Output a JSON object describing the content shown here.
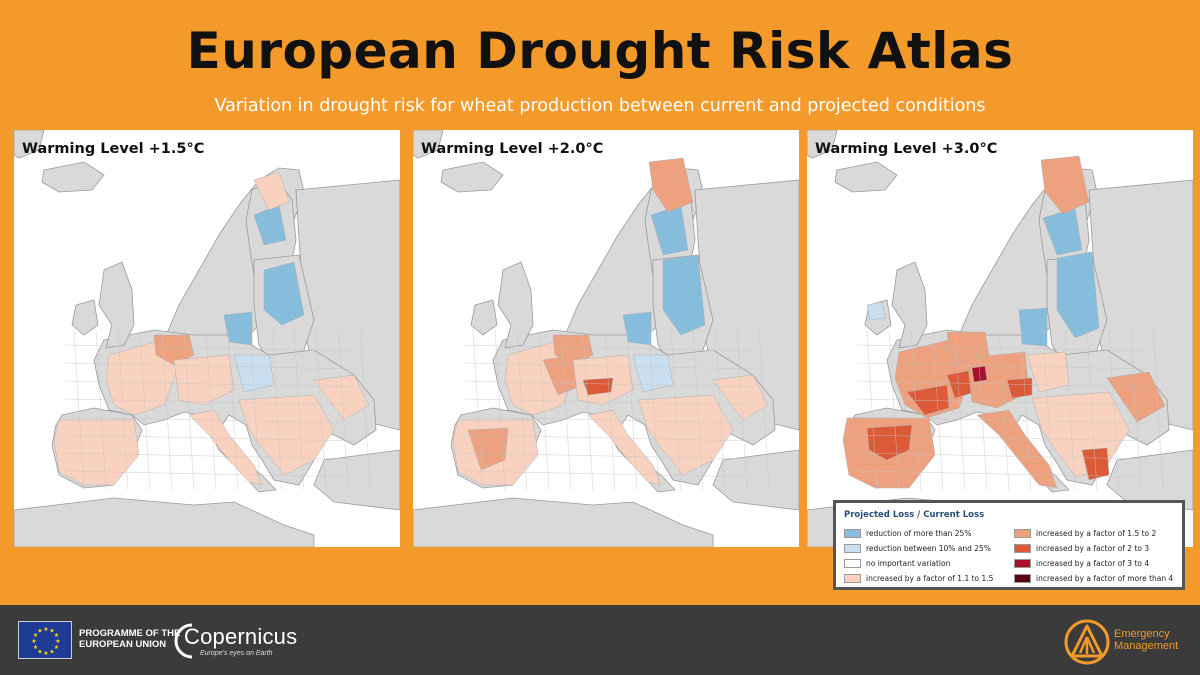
{
  "header": {
    "title": "European Drought Risk Atlas",
    "subtitle": "Variation in drought risk for wheat production between current and projected conditions"
  },
  "panels": [
    {
      "label": "Warming Level +1.5°C"
    },
    {
      "label": "Warming Level +2.0°C"
    },
    {
      "label": "Warming Level +3.0°C"
    }
  ],
  "colors": {
    "background_orange": "#f39a2b",
    "land_grey": "#d9d9d9",
    "sea": "#ffffff",
    "reduction_more_25": "#86bcdc",
    "reduction_10_25": "#c9dfef",
    "no_variation": "#ffffff",
    "factor_1_1_to_1_5": "#f9d2bf",
    "factor_1_5_to_2": "#eda17f",
    "factor_2_to_3": "#dc5a37",
    "factor_3_to_4": "#a8102b",
    "factor_more_4": "#5c0416"
  },
  "legend": {
    "title": "Projected Loss / Current Loss",
    "items": [
      {
        "label": "reduction of more than 25%",
        "color": "#86bcdc"
      },
      {
        "label": "reduction between 10% and 25%",
        "color": "#c9dfef"
      },
      {
        "label": "no important variation",
        "color": "#ffffff"
      },
      {
        "label": "increased by a factor of 1.1 to 1.5",
        "color": "#f9d2bf"
      },
      {
        "label": "increased by a factor of 1.5 to 2",
        "color": "#eda17f"
      },
      {
        "label": "increased by a factor of 2 to 3",
        "color": "#dc5a37"
      },
      {
        "label": "increased by a factor of 3 to 4",
        "color": "#a8102b"
      },
      {
        "label": "increased by a factor of more than 4",
        "color": "#5c0416"
      }
    ]
  },
  "footer": {
    "eu_programme_line1": "PROGRAMME OF THE",
    "eu_programme_line2": "EUROPEAN UNION",
    "copernicus_name": "Copernicus",
    "copernicus_tagline": "Europe's eyes on Earth",
    "em_line1": "Emergency",
    "em_line2": "Management"
  }
}
